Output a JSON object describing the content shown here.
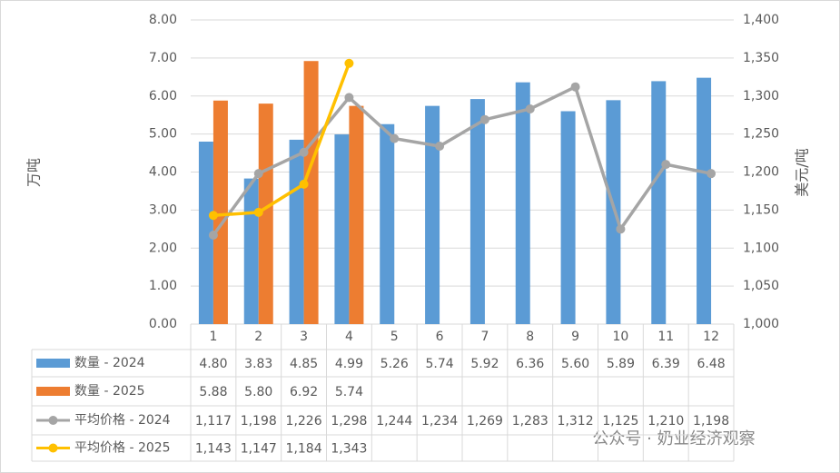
{
  "chart_data": {
    "type": "bar_line_table",
    "categories": [
      "1",
      "2",
      "3",
      "4",
      "5",
      "6",
      "7",
      "8",
      "9",
      "10",
      "11",
      "12"
    ],
    "ylabel": "万吨",
    "y2label": "美元/吨",
    "ylim": [
      0,
      8
    ],
    "yticks": [
      {
        "value": 0,
        "label": "0.00"
      },
      {
        "value": 1,
        "label": "1.00"
      },
      {
        "value": 2,
        "label": "2.00"
      },
      {
        "value": 3,
        "label": "3.00"
      },
      {
        "value": 4,
        "label": "4.00"
      },
      {
        "value": 5,
        "label": "5.00"
      },
      {
        "value": 6,
        "label": "6.00"
      },
      {
        "value": 7,
        "label": "7.00"
      },
      {
        "value": 8,
        "label": "8.00"
      }
    ],
    "y2lim": [
      1000,
      1400
    ],
    "y2ticks": [
      {
        "value": 1000,
        "label": "1,000"
      },
      {
        "value": 1050,
        "label": "1,050"
      },
      {
        "value": 1100,
        "label": "1,100"
      },
      {
        "value": 1150,
        "label": "1,150"
      },
      {
        "value": 1200,
        "label": "1,200"
      },
      {
        "value": 1250,
        "label": "1,250"
      },
      {
        "value": 1300,
        "label": "1,300"
      },
      {
        "value": 1350,
        "label": "1,350"
      },
      {
        "value": 1400,
        "label": "1,400"
      }
    ],
    "grid": true,
    "series": [
      {
        "name": "数量 - 2024",
        "kind": "bar",
        "color": "#5b9bd5",
        "values": [
          4.8,
          3.83,
          4.85,
          4.99,
          5.26,
          5.74,
          5.92,
          6.36,
          5.6,
          5.89,
          6.39,
          6.48
        ],
        "value_labels": [
          "4.80",
          "3.83",
          "4.85",
          "4.99",
          "5.26",
          "5.74",
          "5.92",
          "6.36",
          "5.60",
          "5.89",
          "6.39",
          "6.48"
        ]
      },
      {
        "name": "数量 - 2025",
        "kind": "bar",
        "color": "#ed7d31",
        "values": [
          5.88,
          5.8,
          6.92,
          5.74,
          null,
          null,
          null,
          null,
          null,
          null,
          null,
          null
        ],
        "value_labels": [
          "5.88",
          "5.80",
          "6.92",
          "5.74",
          null,
          null,
          null,
          null,
          null,
          null,
          null,
          null
        ]
      },
      {
        "name": "平均价格 - 2024",
        "kind": "line",
        "axis": "y2",
        "color": "#a5a5a5",
        "values": [
          1117,
          1198,
          1226,
          1298,
          1244,
          1234,
          1269,
          1283,
          1312,
          1125,
          1210,
          1198
        ],
        "value_labels": [
          "1,117",
          "1,198",
          "1,226",
          "1,298",
          "1,244",
          "1,234",
          "1,269",
          "1,283",
          "1,312",
          "1,125",
          "1,210",
          "1,198"
        ]
      },
      {
        "name": "平均价格 - 2025",
        "kind": "line",
        "axis": "y2",
        "color": "#ffc000",
        "values": [
          1143,
          1147,
          1184,
          1343,
          null,
          null,
          null,
          null,
          null,
          null,
          null,
          null
        ],
        "value_labels": [
          "1,143",
          "1,147",
          "1,184",
          "1,343",
          null,
          null,
          null,
          null,
          null,
          null,
          null,
          null
        ]
      }
    ],
    "watermark": "公众号 · 奶业经济观察"
  }
}
